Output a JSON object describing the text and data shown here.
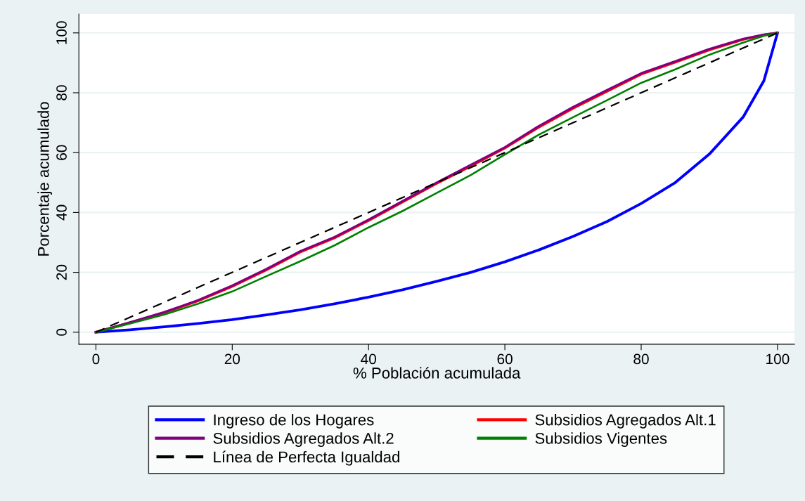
{
  "chart_data": {
    "type": "line",
    "xlabel": "% Población acumulada",
    "ylabel": "Porcentaje acumulado",
    "x": [
      0,
      5,
      10,
      15,
      20,
      25,
      30,
      35,
      40,
      45,
      50,
      55,
      60,
      65,
      70,
      75,
      80,
      85,
      90,
      95,
      98,
      100
    ],
    "series": [
      {
        "name": "Ingreso de los Hogares",
        "color": "#0000ff",
        "values": [
          0,
          0.8,
          1.8,
          2.9,
          4.2,
          5.8,
          7.5,
          9.5,
          11.7,
          14.2,
          17,
          20,
          23.5,
          27.5,
          32,
          37,
          43,
          50,
          59.5,
          72,
          84,
          100
        ]
      },
      {
        "name": "Subsidios Agregados Alt.1",
        "color": "#ff0000",
        "values": [
          0,
          3.2,
          6.5,
          10.5,
          15.3,
          20.8,
          26.8,
          31.5,
          37.3,
          43.5,
          49.7,
          55.5,
          61.5,
          68.5,
          74.8,
          80.5,
          86.2,
          90.2,
          94.3,
          97.8,
          99.3,
          100
        ]
      },
      {
        "name": "Subsidios Agregados Alt.2",
        "color": "#800080",
        "values": [
          0,
          3.3,
          6.7,
          10.7,
          15.6,
          21.1,
          27.1,
          31.8,
          37.6,
          43.8,
          50,
          55.9,
          61.8,
          68.9,
          75.2,
          80.9,
          86.5,
          90.5,
          94.6,
          98,
          99.4,
          100
        ]
      },
      {
        "name": "Subsidios Vigentes",
        "color": "#008000",
        "values": [
          0,
          2.9,
          5.9,
          9.5,
          13.6,
          18.7,
          23.7,
          29,
          35,
          40.5,
          46.5,
          52.5,
          59.4,
          66,
          71.8,
          77.5,
          83.3,
          87.8,
          92.7,
          96.8,
          99,
          100
        ]
      },
      {
        "name": "Línea de Perfecta Igualdad",
        "color": "#000000",
        "line_style": "dashed",
        "x": [
          0,
          100
        ],
        "values": [
          0,
          100
        ]
      }
    ],
    "xlim": [
      -2.5,
      102.5
    ],
    "ylim": [
      -4,
      106.3
    ],
    "xticks": [
      0,
      20,
      40,
      60,
      80,
      100
    ],
    "yticks": [
      0,
      20,
      40,
      60,
      80,
      100
    ],
    "grid": "y",
    "legend": "bottom"
  }
}
